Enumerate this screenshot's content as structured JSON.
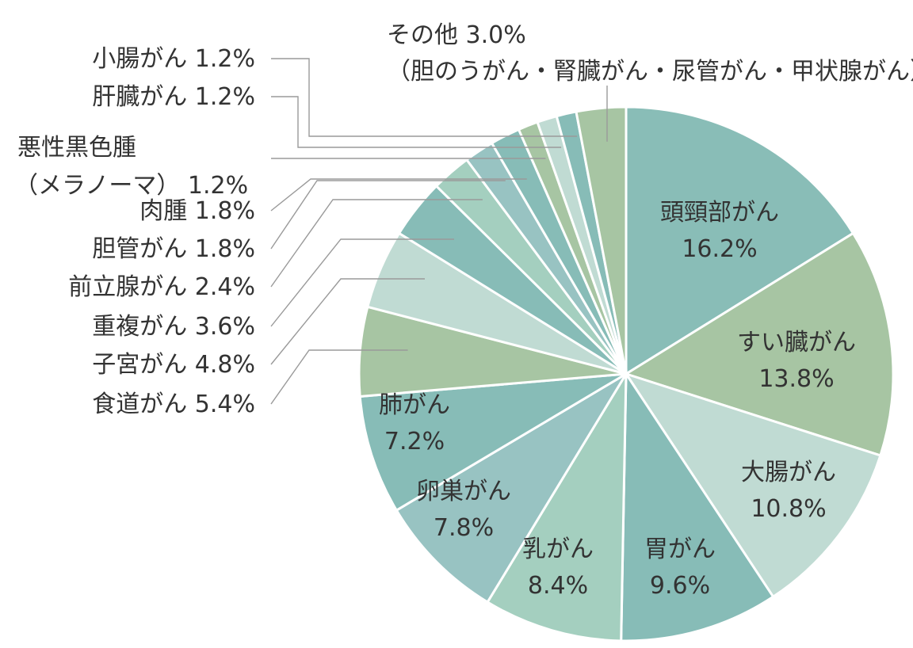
{
  "chart_data": {
    "type": "pie",
    "title": "",
    "start": "top-clockwise",
    "slices": [
      {
        "name": "頭頸部がん",
        "value": 16.2,
        "label": "16.2%",
        "color": "#89bdb7"
      },
      {
        "name": "すい臓がん",
        "value": 13.8,
        "label": "13.8%",
        "color": "#a7c5a3"
      },
      {
        "name": "大腸がん",
        "value": 10.8,
        "label": "10.8%",
        "color": "#c0dbd3"
      },
      {
        "name": "胃がん",
        "value": 9.6,
        "label": "9.6%",
        "color": "#87bcb7"
      },
      {
        "name": "乳がん",
        "value": 8.4,
        "label": "8.4%",
        "color": "#a4cfbf"
      },
      {
        "name": "卵巣がん",
        "value": 7.8,
        "label": "7.8%",
        "color": "#98c3c2"
      },
      {
        "name": "肺がん",
        "value": 7.2,
        "label": "7.2%",
        "color": "#87bcb7"
      },
      {
        "name": "食道がん",
        "value": 5.4,
        "label": "5.4%",
        "color": "#a7c5a3"
      },
      {
        "name": "子宮がん",
        "value": 4.8,
        "label": "4.8%",
        "color": "#c0dbd3"
      },
      {
        "name": "重複がん",
        "value": 3.6,
        "label": "3.6%",
        "color": "#87bcb7"
      },
      {
        "name": "前立腺がん",
        "value": 2.4,
        "label": "2.4%",
        "color": "#a4cfbf"
      },
      {
        "name": "胆管がん",
        "value": 1.8,
        "label": "1.8%",
        "color": "#98c3c2"
      },
      {
        "name": "肉腫",
        "value": 1.8,
        "label": "1.8%",
        "color": "#87bcb7"
      },
      {
        "name": "悪性黒色腫\n（メラノーマ）",
        "value": 1.2,
        "label": "1.2%",
        "color": "#a7c5a3"
      },
      {
        "name": "肝臓がん",
        "value": 1.2,
        "label": "1.2%",
        "color": "#c0dbd3"
      },
      {
        "name": "小腸がん",
        "value": 1.2,
        "label": "1.2%",
        "color": "#87bcb7"
      },
      {
        "name": "その他",
        "value": 3.0,
        "label": "3.0%",
        "color": "#a7c5a3",
        "note": "（胆のうがん・腎臓がん・尿管がん・甲状腺がん）"
      }
    ]
  }
}
